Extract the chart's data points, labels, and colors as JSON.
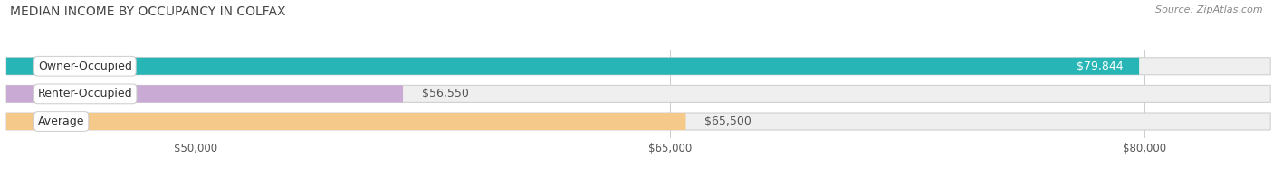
{
  "title": "MEDIAN INCOME BY OCCUPANCY IN COLFAX",
  "source": "Source: ZipAtlas.com",
  "categories": [
    "Owner-Occupied",
    "Renter-Occupied",
    "Average"
  ],
  "values": [
    79844,
    56550,
    65500
  ],
  "bar_colors": [
    "#28b5b5",
    "#c9aad4",
    "#f5c98a"
  ],
  "bar_bg_color": "#efefef",
  "value_labels": [
    "$79,844",
    "$56,550",
    "$65,500"
  ],
  "value_label_inside": [
    true,
    false,
    false
  ],
  "xlim_min": 44000,
  "xlim_max": 84000,
  "xticks": [
    50000,
    65000,
    80000
  ],
  "xtick_labels": [
    "$50,000",
    "$65,000",
    "$80,000"
  ],
  "title_fontsize": 10,
  "source_fontsize": 8,
  "label_fontsize": 9,
  "value_fontsize": 9,
  "background_color": "#ffffff"
}
